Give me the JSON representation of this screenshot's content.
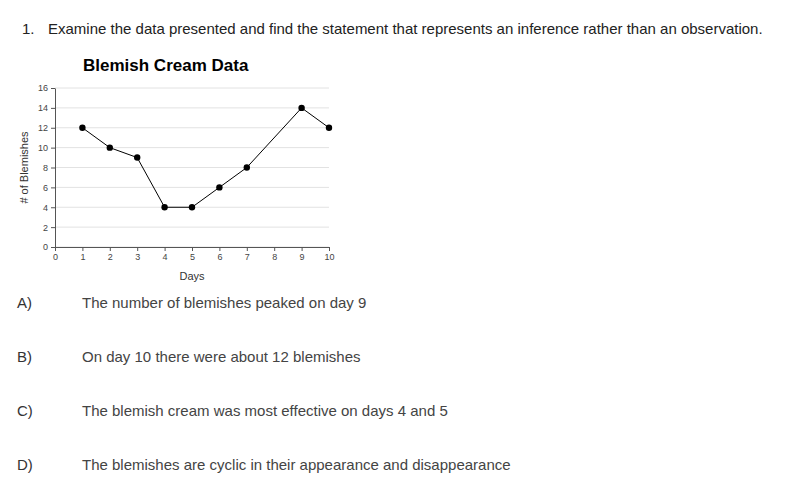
{
  "question": {
    "number": "1.",
    "text": "Examine the data presented and find the statement that represents an inference rather than an observation."
  },
  "chart_data": {
    "type": "line",
    "title": "Blemish Cream Data",
    "x_label": "Days",
    "y_label": "# of Blemishes",
    "x": [
      1,
      2,
      3,
      4,
      5,
      6,
      7,
      9,
      10
    ],
    "values": [
      12,
      10,
      9,
      4,
      4,
      6,
      8,
      14,
      12
    ],
    "color": "#000000",
    "marker": "circle",
    "line_style": "solid",
    "xlim": [
      0,
      10
    ],
    "xticks": [
      0,
      1,
      2,
      3,
      4,
      5,
      6,
      7,
      8,
      9,
      10
    ],
    "ylim": [
      0,
      16
    ],
    "yticks": [
      0,
      2,
      4,
      6,
      8,
      10,
      12,
      14,
      16
    ],
    "grid": true
  },
  "choices": [
    {
      "letter": "A)",
      "text": "The number of blemishes peaked on day 9"
    },
    {
      "letter": "B)",
      "text": "On day 10 there were about 12 blemishes"
    },
    {
      "letter": "C)",
      "text": "The blemish cream was most effective on days 4 and 5"
    },
    {
      "letter": "D)",
      "text": "The blemishes are cyclic in their appearance and disappearance"
    }
  ]
}
